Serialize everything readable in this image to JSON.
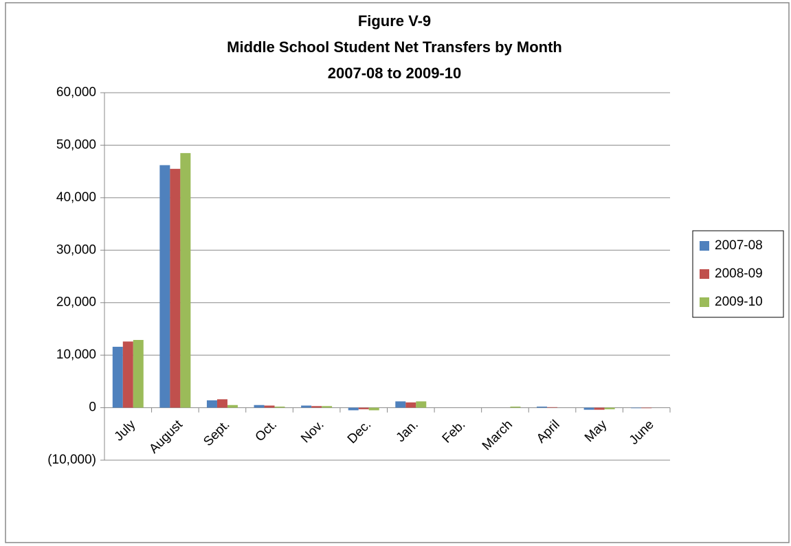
{
  "chart_data": {
    "type": "bar",
    "title": [
      "Figure V-9",
      "Middle School Student Net Transfers by Month",
      "2007-08 to 2009-10"
    ],
    "categories": [
      "July",
      "August",
      "Sept.",
      "Oct.",
      "Nov.",
      "Dec.",
      "Jan.",
      "Feb.",
      "March",
      "April",
      "May",
      "June"
    ],
    "series": [
      {
        "name": "2007-08",
        "color": "#4f81bd",
        "values": [
          11600,
          46200,
          1400,
          500,
          400,
          -500,
          1200,
          0,
          0,
          200,
          -400,
          -100
        ]
      },
      {
        "name": "2008-09",
        "color": "#c0504d",
        "values": [
          12600,
          45500,
          1600,
          400,
          300,
          -300,
          1000,
          0,
          0,
          100,
          -400,
          -100
        ]
      },
      {
        "name": "2009-10",
        "color": "#9bbb59",
        "values": [
          12900,
          48500,
          500,
          200,
          300,
          -500,
          1200,
          0,
          200,
          0,
          -300,
          0
        ]
      }
    ],
    "ylim": [
      -10000,
      60000
    ],
    "yticks": [
      {
        "value": -10000,
        "label": "(10,000)"
      },
      0,
      {
        "value": 10000,
        "label": "10,000"
      },
      {
        "value": 20000,
        "label": "20,000"
      },
      {
        "value": 30000,
        "label": "30,000"
      },
      {
        "value": 40000,
        "label": "40,000"
      },
      {
        "value": 50000,
        "label": "50,000"
      },
      {
        "value": 60000,
        "label": "60,000"
      }
    ],
    "grid": true,
    "legend": "right"
  }
}
